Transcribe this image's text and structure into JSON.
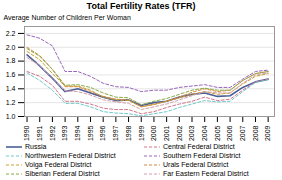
{
  "chart_data": {
    "type": "line",
    "title": "Total Fertility Rates (TFR)",
    "y_label": "Average Number of Children Per Woman",
    "x": [
      1990,
      1991,
      1992,
      1993,
      1994,
      1995,
      1996,
      1997,
      1998,
      1999,
      2000,
      2001,
      2002,
      2003,
      2004,
      2005,
      2006,
      2007,
      2008,
      2009
    ],
    "series": [
      {
        "name": "Russia",
        "color": "#4a5f9a",
        "line_style": "solid",
        "values": [
          1.89,
          1.73,
          1.55,
          1.36,
          1.4,
          1.34,
          1.28,
          1.23,
          1.24,
          1.16,
          1.2,
          1.22,
          1.28,
          1.32,
          1.34,
          1.29,
          1.3,
          1.42,
          1.5,
          1.54
        ]
      },
      {
        "name": "Central Federal District",
        "color": "#d4748a",
        "line_style": "dashed",
        "values": [
          1.65,
          1.58,
          1.45,
          1.22,
          1.22,
          1.18,
          1.12,
          1.1,
          1.1,
          1.04,
          1.07,
          1.13,
          1.18,
          1.22,
          1.28,
          1.23,
          1.25,
          1.38,
          1.5,
          1.54
        ]
      },
      {
        "name": "Northwestern Federal District",
        "color": "#70c8cc",
        "line_style": "dashed",
        "values": [
          1.63,
          1.52,
          1.38,
          1.19,
          1.19,
          1.14,
          1.07,
          1.05,
          1.04,
          1.01,
          1.04,
          1.07,
          1.13,
          1.18,
          1.23,
          1.21,
          1.22,
          1.36,
          1.49,
          1.53
        ]
      },
      {
        "name": "Southern Federal District",
        "color": "#9966bb",
        "line_style": "dashed",
        "values": [
          2.18,
          2.13,
          2.02,
          1.65,
          1.65,
          1.58,
          1.48,
          1.43,
          1.42,
          1.36,
          1.38,
          1.38,
          1.42,
          1.44,
          1.46,
          1.42,
          1.42,
          1.54,
          1.65,
          1.67
        ]
      },
      {
        "name": "Volga Federal District",
        "color": "#c8a030",
        "line_style": "dashed",
        "values": [
          1.94,
          1.82,
          1.62,
          1.44,
          1.44,
          1.38,
          1.28,
          1.24,
          1.23,
          1.14,
          1.17,
          1.22,
          1.27,
          1.32,
          1.36,
          1.32,
          1.34,
          1.47,
          1.58,
          1.62
        ]
      },
      {
        "name": "Urals Federal District",
        "color": "#d48840",
        "line_style": "dashed",
        "values": [
          2.0,
          1.88,
          1.68,
          1.43,
          1.43,
          1.36,
          1.29,
          1.25,
          1.24,
          1.14,
          1.18,
          1.22,
          1.28,
          1.35,
          1.4,
          1.36,
          1.38,
          1.52,
          1.62,
          1.65
        ]
      },
      {
        "name": "Siberian Federal District",
        "color": "#88aa44",
        "line_style": "dashed",
        "values": [
          1.98,
          1.87,
          1.68,
          1.45,
          1.46,
          1.42,
          1.34,
          1.28,
          1.27,
          1.17,
          1.22,
          1.26,
          1.32,
          1.38,
          1.41,
          1.38,
          1.38,
          1.52,
          1.62,
          1.65
        ]
      },
      {
        "name": "Far Eastern Federal District",
        "color": "#d4a0aa",
        "line_style": "dashed",
        "values": [
          1.85,
          1.74,
          1.54,
          1.37,
          1.36,
          1.31,
          1.24,
          1.21,
          1.19,
          1.1,
          1.14,
          1.18,
          1.24,
          1.3,
          1.36,
          1.34,
          1.34,
          1.48,
          1.6,
          1.63
        ]
      }
    ],
    "xlim": [
      1989.8,
      2009.5
    ],
    "xticks": [
      1990,
      1991,
      1992,
      1993,
      1994,
      1995,
      1996,
      1997,
      1998,
      1999,
      2000,
      2001,
      2002,
      2003,
      2004,
      2005,
      2006,
      2007,
      2008,
      2009
    ],
    "ylim": [
      1.0,
      2.3
    ],
    "yticks": [
      1.0,
      1.2,
      1.4,
      1.6,
      1.8,
      2.0,
      2.2
    ],
    "grid": "y"
  }
}
